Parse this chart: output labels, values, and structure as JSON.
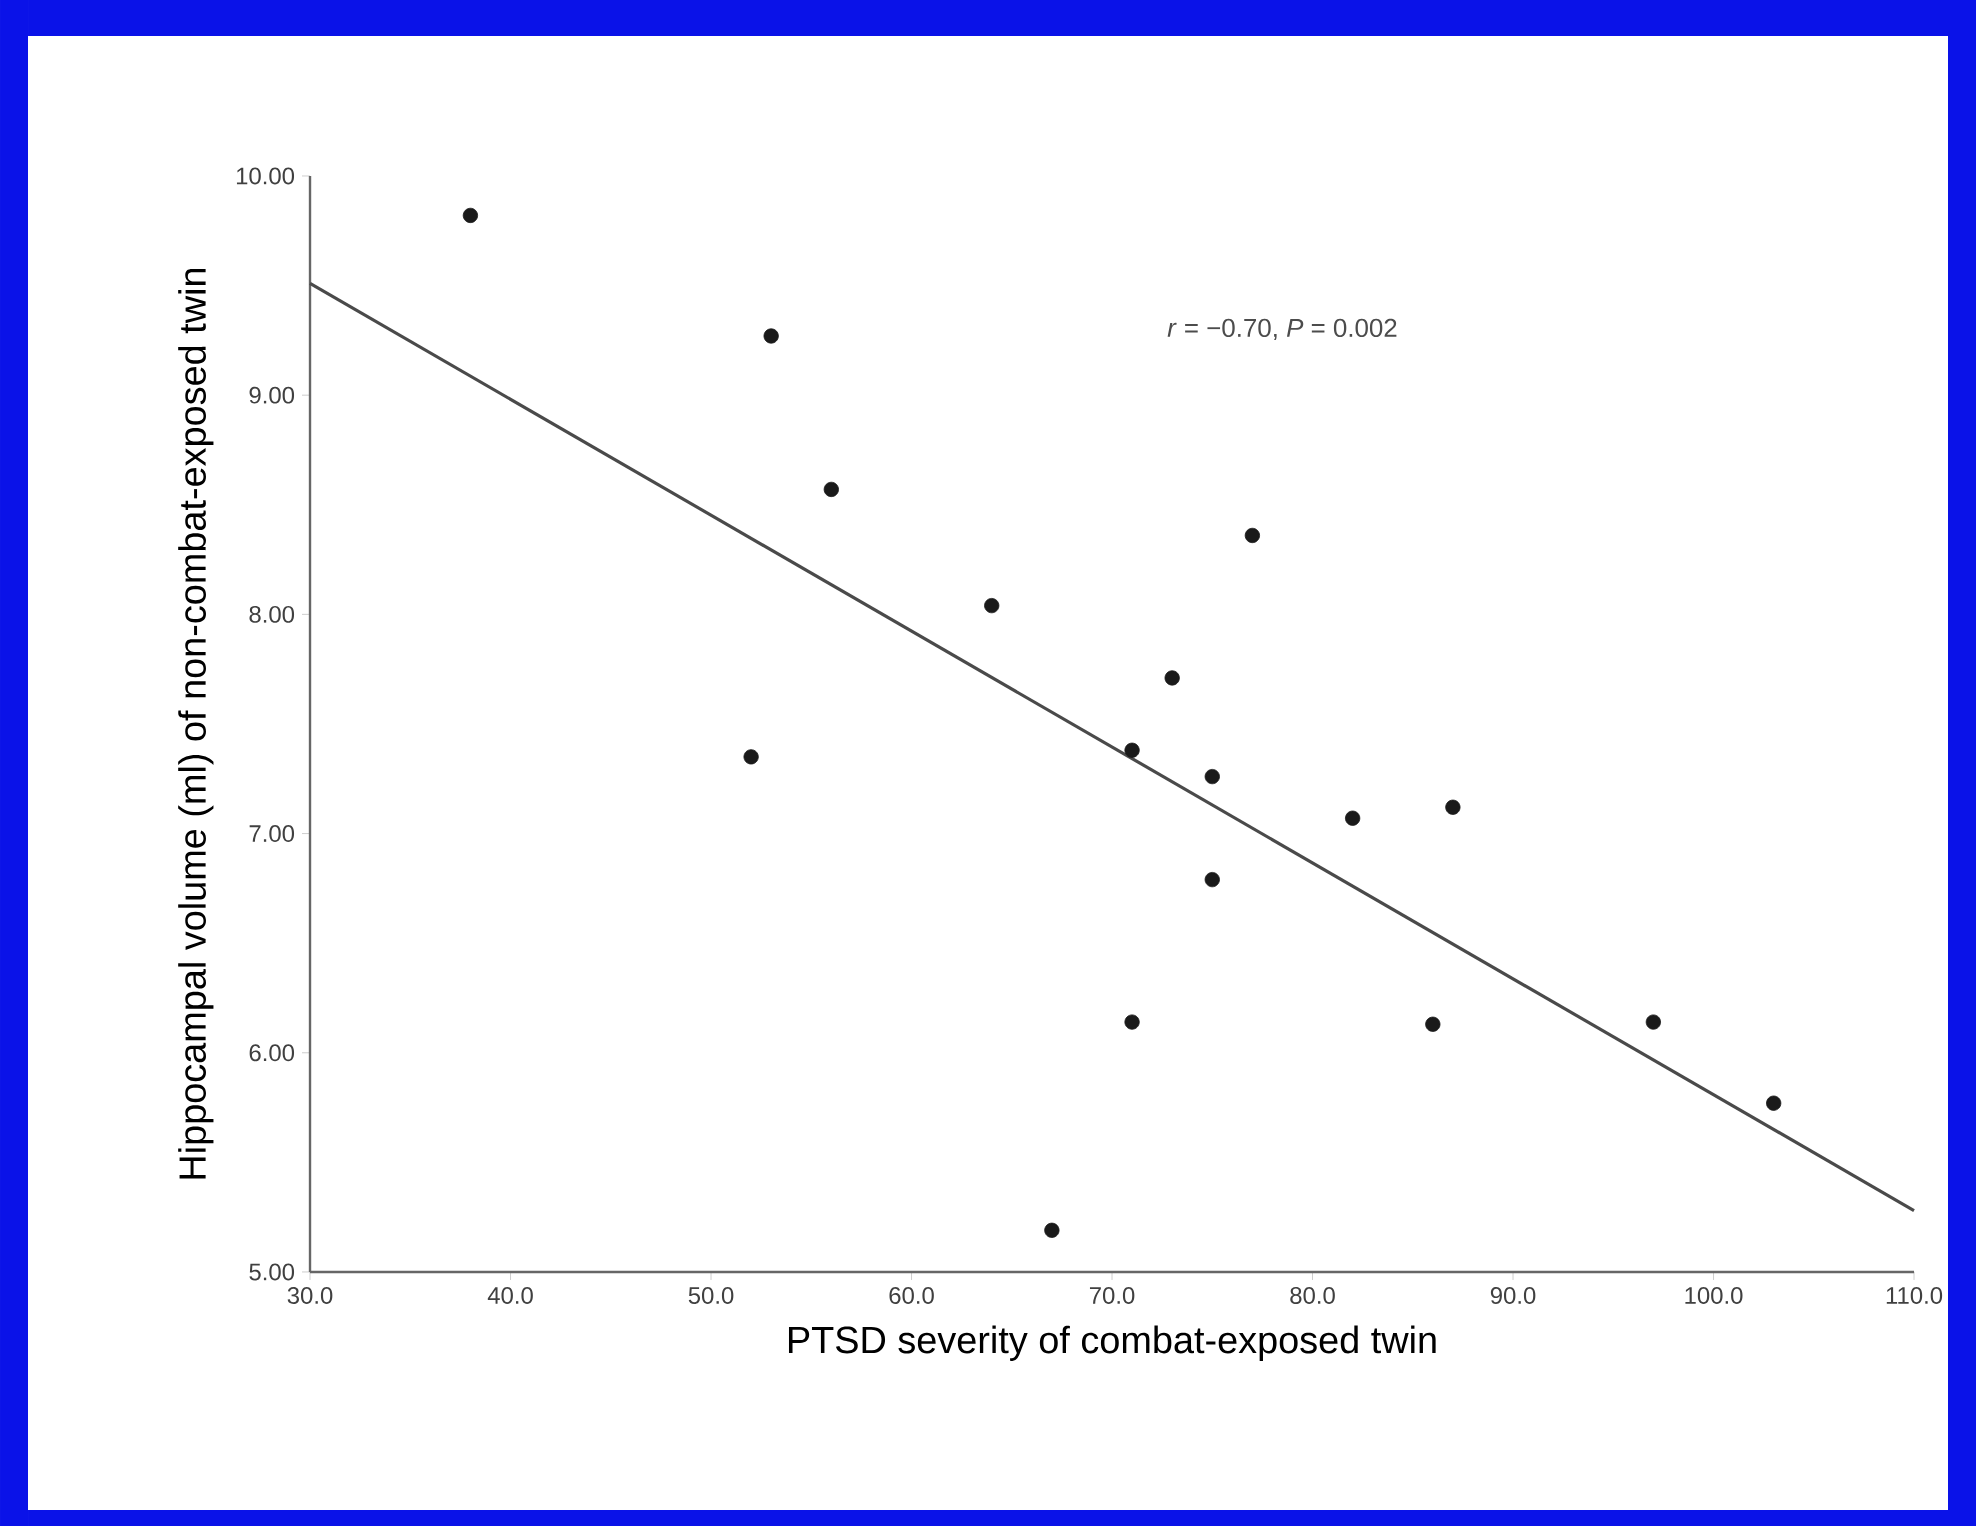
{
  "chart_data": {
    "type": "scatter",
    "xlabel": "PTSD severity of combat-exposed twin",
    "ylabel": "Hippocampal volume (ml) of non-combat-exposed twin",
    "annotations": [
      "*r* = −0.70, *P* = 0.002"
    ],
    "xlim": [
      30,
      110
    ],
    "ylim": [
      5,
      10
    ],
    "xticks": [
      {
        "value": 30,
        "label": "30.0"
      },
      {
        "value": 40,
        "label": "40.0"
      },
      {
        "value": 50,
        "label": "50.0"
      },
      {
        "value": 60,
        "label": "60.0"
      },
      {
        "value": 70,
        "label": "70.0"
      },
      {
        "value": 80,
        "label": "80.0"
      },
      {
        "value": 90,
        "label": "90.0"
      },
      {
        "value": 100,
        "label": "100.0"
      },
      {
        "value": 110,
        "label": "110.0"
      }
    ],
    "yticks": [
      {
        "value": 5,
        "label": "5.00"
      },
      {
        "value": 6,
        "label": "6.00"
      },
      {
        "value": 7,
        "label": "7.00"
      },
      {
        "value": 8,
        "label": "8.00"
      },
      {
        "value": 9,
        "label": "9.00"
      },
      {
        "value": 10,
        "label": "10.00"
      }
    ],
    "grid": false,
    "series": [
      {
        "type": "scatter",
        "marker": "circle",
        "color": "#1a1a1a",
        "x": [
          38,
          52,
          53,
          56,
          64,
          67,
          71,
          71,
          73,
          75,
          75,
          77,
          82,
          86,
          87,
          97,
          103
        ],
        "values": [
          9.82,
          7.35,
          9.27,
          8.57,
          8.04,
          5.19,
          7.38,
          6.14,
          7.71,
          7.26,
          6.79,
          8.36,
          7.07,
          6.13,
          7.12,
          6.14,
          5.77
        ]
      },
      {
        "type": "line",
        "marker": "none",
        "line_style": "solid",
        "color": "#4a4a4a",
        "x": [
          30,
          110
        ],
        "values": [
          9.51,
          5.28
        ]
      }
    ]
  }
}
